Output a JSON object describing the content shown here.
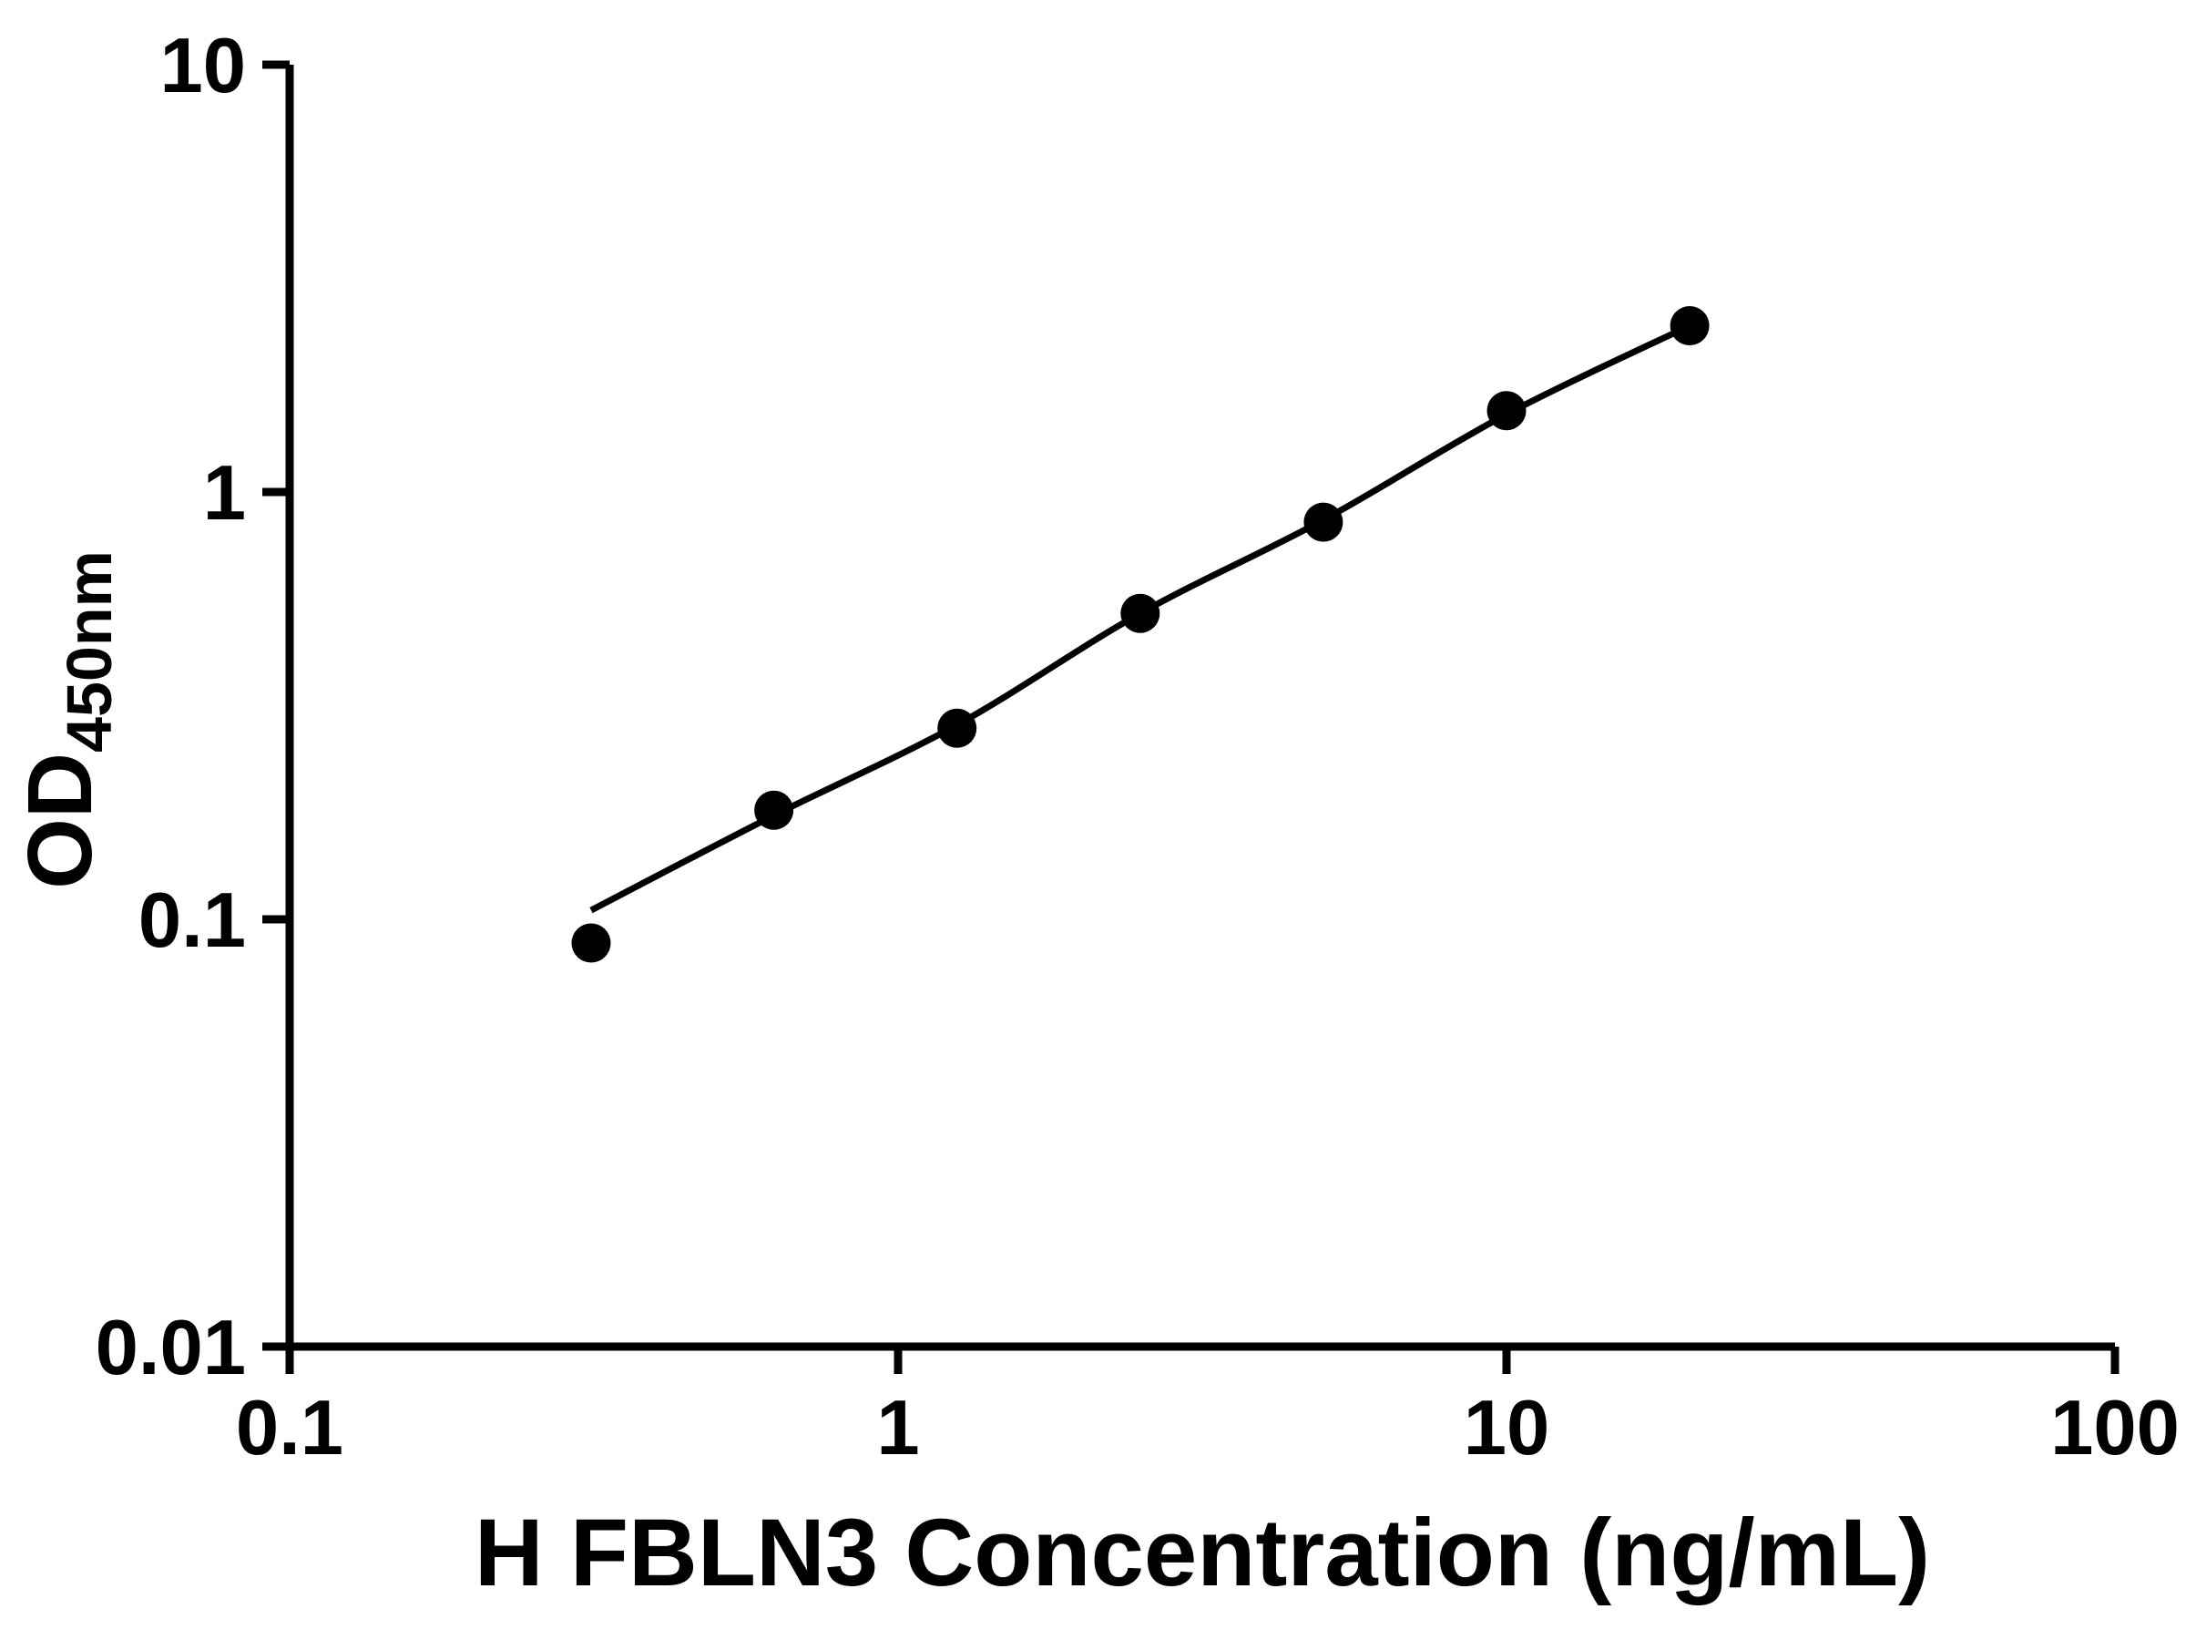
{
  "chart_data": {
    "type": "scatter",
    "title": "",
    "xlabel": "H FBLN3 Concentration (ng/mL)",
    "ylabel_main": "OD",
    "ylabel_sub": "450nm",
    "x_scale": "log",
    "y_scale": "log",
    "xlim": [
      0.1,
      100
    ],
    "ylim": [
      0.01,
      10
    ],
    "x_ticks": [
      "0.1",
      "1",
      "10",
      "100"
    ],
    "y_ticks": [
      "0.01",
      "0.1",
      "1",
      "10"
    ],
    "grid": false,
    "legend": false,
    "marker_color": "#000000",
    "line_color": "#000000",
    "axis_color": "#000000",
    "points": [
      {
        "x": 0.313,
        "y": 0.088
      },
      {
        "x": 0.625,
        "y": 0.18
      },
      {
        "x": 1.25,
        "y": 0.28
      },
      {
        "x": 2.5,
        "y": 0.52
      },
      {
        "x": 5,
        "y": 0.85
      },
      {
        "x": 10,
        "y": 1.55
      },
      {
        "x": 20,
        "y": 2.45
      }
    ],
    "fit_curve": [
      {
        "x": 0.313,
        "y": 0.105
      },
      {
        "x": 0.625,
        "y": 0.175
      },
      {
        "x": 1.25,
        "y": 0.285
      },
      {
        "x": 2.5,
        "y": 0.52
      },
      {
        "x": 5,
        "y": 0.86
      },
      {
        "x": 10,
        "y": 1.52
      },
      {
        "x": 20,
        "y": 2.45
      }
    ]
  }
}
